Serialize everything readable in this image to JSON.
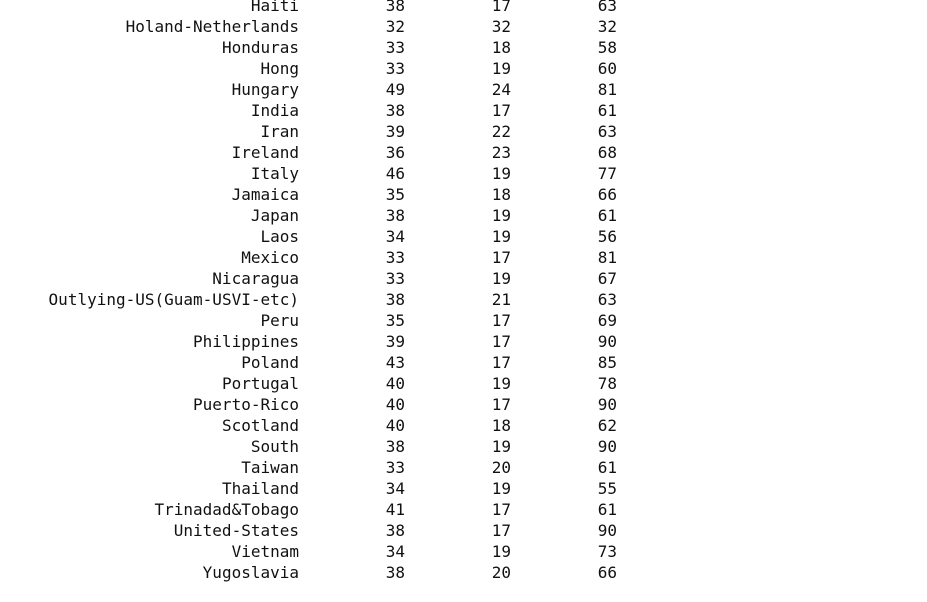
{
  "table": {
    "rows": [
      {
        "country": "Haiti",
        "a": "38",
        "b": "17",
        "c": "63"
      },
      {
        "country": "Holand-Netherlands",
        "a": "32",
        "b": "32",
        "c": "32"
      },
      {
        "country": "Honduras",
        "a": "33",
        "b": "18",
        "c": "58"
      },
      {
        "country": "Hong",
        "a": "33",
        "b": "19",
        "c": "60"
      },
      {
        "country": "Hungary",
        "a": "49",
        "b": "24",
        "c": "81"
      },
      {
        "country": "India",
        "a": "38",
        "b": "17",
        "c": "61"
      },
      {
        "country": "Iran",
        "a": "39",
        "b": "22",
        "c": "63"
      },
      {
        "country": "Ireland",
        "a": "36",
        "b": "23",
        "c": "68"
      },
      {
        "country": "Italy",
        "a": "46",
        "b": "19",
        "c": "77"
      },
      {
        "country": "Jamaica",
        "a": "35",
        "b": "18",
        "c": "66"
      },
      {
        "country": "Japan",
        "a": "38",
        "b": "19",
        "c": "61"
      },
      {
        "country": "Laos",
        "a": "34",
        "b": "19",
        "c": "56"
      },
      {
        "country": "Mexico",
        "a": "33",
        "b": "17",
        "c": "81"
      },
      {
        "country": "Nicaragua",
        "a": "33",
        "b": "19",
        "c": "67"
      },
      {
        "country": "Outlying-US(Guam-USVI-etc)",
        "a": "38",
        "b": "21",
        "c": "63"
      },
      {
        "country": "Peru",
        "a": "35",
        "b": "17",
        "c": "69"
      },
      {
        "country": "Philippines",
        "a": "39",
        "b": "17",
        "c": "90"
      },
      {
        "country": "Poland",
        "a": "43",
        "b": "17",
        "c": "85"
      },
      {
        "country": "Portugal",
        "a": "40",
        "b": "19",
        "c": "78"
      },
      {
        "country": "Puerto-Rico",
        "a": "40",
        "b": "17",
        "c": "90"
      },
      {
        "country": "Scotland",
        "a": "40",
        "b": "18",
        "c": "62"
      },
      {
        "country": "South",
        "a": "38",
        "b": "19",
        "c": "90"
      },
      {
        "country": "Taiwan",
        "a": "33",
        "b": "20",
        "c": "61"
      },
      {
        "country": "Thailand",
        "a": "34",
        "b": "19",
        "c": "55"
      },
      {
        "country": "Trinadad&Tobago",
        "a": "41",
        "b": "17",
        "c": "61"
      },
      {
        "country": "United-States",
        "a": "38",
        "b": "17",
        "c": "90"
      },
      {
        "country": "Vietnam",
        "a": "34",
        "b": "19",
        "c": "73"
      },
      {
        "country": "Yugoslavia",
        "a": "38",
        "b": "20",
        "c": "66"
      }
    ]
  }
}
